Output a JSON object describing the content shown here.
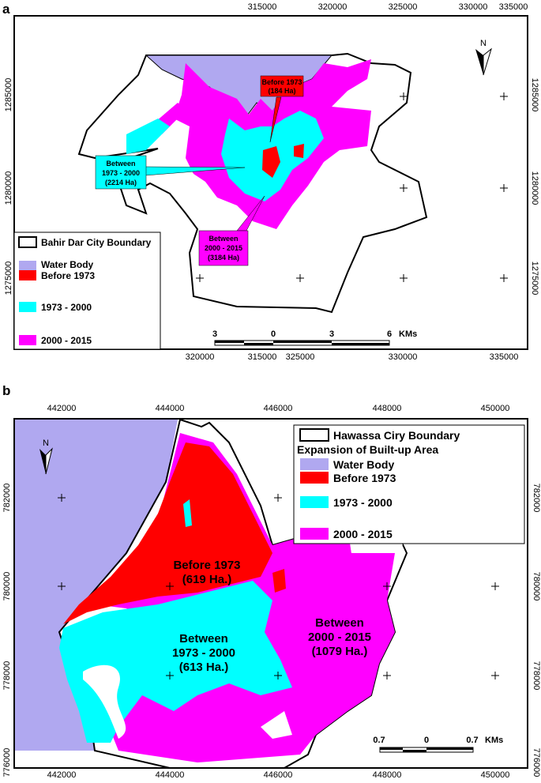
{
  "panel_a": {
    "letter": "a",
    "x_ticks": [
      "315000",
      "320000",
      "325000",
      "330000",
      "335000"
    ],
    "y_ticks": [
      "1285000",
      "1280000",
      "1275000"
    ],
    "north": "N",
    "legend": {
      "boundary": "Bahir Dar City Boundary",
      "water": "Water Body",
      "before1973": "Before 1973",
      "p1973_2000": "1973 - 2000",
      "p2000_2015": "2000 - 2015"
    },
    "callouts": {
      "before1973": [
        "Before 1973",
        "(184 Ha)"
      ],
      "p1973_2000": [
        "Between",
        "1973 - 2000",
        "(2214 Ha)"
      ],
      "p2000_2015": [
        "Between",
        "2000 - 2015",
        "(3184 Ha)"
      ]
    },
    "scale": {
      "labels": [
        "3",
        "0",
        "3",
        "6"
      ],
      "unit": "KMs"
    }
  },
  "panel_b": {
    "letter": "b",
    "x_ticks": [
      "442000",
      "444000",
      "446000",
      "448000",
      "450000"
    ],
    "y_ticks": [
      "782000",
      "780000",
      "778000",
      "776000"
    ],
    "north": "N",
    "legend": {
      "boundary": "Hawassa Ciry Boundary",
      "title": "Expansion of Built-up Area",
      "water": "Water Body",
      "before1973": "Before 1973",
      "p1973_2000": "1973 - 2000",
      "p2000_2015": "2000 - 2015"
    },
    "labels": {
      "before1973": [
        "Before 1973",
        "(619 Ha.)"
      ],
      "p1973_2000": [
        "Between",
        "1973 - 2000",
        "(613 Ha.)"
      ],
      "p2000_2015": [
        "Between",
        "2000 - 2015",
        "(1079 Ha.)"
      ]
    },
    "scale": {
      "labels": [
        "0.7",
        "0",
        "0.7"
      ],
      "unit": "KMs"
    }
  },
  "colors": {
    "water": "#b0a8f0",
    "red": "#ff0000",
    "cyan": "#00ffff",
    "magenta": "#ff00ff",
    "frame": "#000000"
  }
}
